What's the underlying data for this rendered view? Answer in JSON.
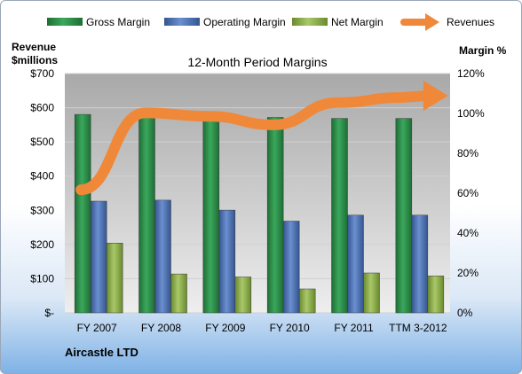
{
  "chart_data": {
    "type": "bar",
    "title": "12-Month Period Margins",
    "left_axis_label_line1": "Revenue",
    "left_axis_label_line2": "$millions",
    "right_axis_label": "Margin %",
    "company": "Aircastle LTD",
    "categories": [
      "FY 2007",
      "FY 2008",
      "FY 2009",
      "FY 2010",
      "FY 2011",
      "TTM 3-2012"
    ],
    "series": [
      {
        "name": "Gross Margin",
        "values": [
          99.5,
          99.0,
          96.5,
          98.0,
          97.5,
          97.5
        ],
        "color": "#2e8b4a"
      },
      {
        "name": "Operating Margin",
        "values": [
          56.0,
          56.5,
          51.5,
          46.0,
          49.0,
          49.0
        ],
        "color": "#4f76b8"
      },
      {
        "name": "Net Margin",
        "values": [
          35.0,
          19.5,
          18.0,
          12.0,
          20.0,
          18.5
        ],
        "color": "#8db04a"
      }
    ],
    "revenues": {
      "name": "Revenues",
      "values": [
        360,
        585,
        575,
        550,
        615,
        630
      ],
      "color": "#f0883a"
    },
    "left_axis": {
      "min": 0,
      "max": 700,
      "ticks": [
        "$-",
        "$100",
        "$200",
        "$300",
        "$400",
        "$500",
        "$600",
        "$700"
      ]
    },
    "right_axis": {
      "min": 0,
      "max": 120,
      "ticks": [
        "0%",
        "20%",
        "40%",
        "60%",
        "80%",
        "100%",
        "120%"
      ]
    },
    "grid": true,
    "legend_position": "top"
  }
}
